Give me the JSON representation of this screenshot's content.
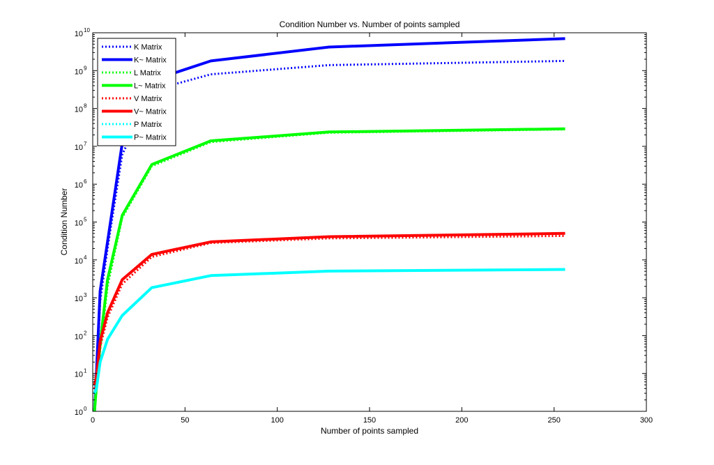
{
  "chart_data": {
    "type": "line",
    "title": "Condition Number vs. Number of points sampled",
    "xlabel": "Number of points sampled",
    "ylabel": "Condition Number",
    "xlim": [
      0,
      300
    ],
    "ylim": [
      1,
      10000000000
    ],
    "yscale": "log",
    "xticks": [
      0,
      50,
      100,
      150,
      200,
      250,
      300
    ],
    "xtick_labels": [
      "0",
      "50",
      "100",
      "150",
      "200",
      "250",
      "300"
    ],
    "yticks": [
      1,
      10,
      100,
      1000,
      10000,
      100000,
      1000000,
      10000000,
      100000000,
      1000000000,
      10000000000
    ],
    "ytick_labels": [
      {
        "base": "10",
        "exp": "0"
      },
      {
        "base": "10",
        "exp": "1"
      },
      {
        "base": "10",
        "exp": "2"
      },
      {
        "base": "10",
        "exp": "3"
      },
      {
        "base": "10",
        "exp": "4"
      },
      {
        "base": "10",
        "exp": "5"
      },
      {
        "base": "10",
        "exp": "6"
      },
      {
        "base": "10",
        "exp": "7"
      },
      {
        "base": "10",
        "exp": "8"
      },
      {
        "base": "10",
        "exp": "9"
      },
      {
        "base": "10",
        "exp": "10"
      }
    ],
    "grid": false,
    "legend_position": "top-left",
    "x": [
      1,
      2,
      4,
      8,
      16,
      32,
      64,
      128,
      256
    ],
    "series": [
      {
        "name": "K Matrix",
        "color": "#0000ff",
        "style": "dotted",
        "values": [
          1,
          5,
          800,
          20000,
          6000000,
          300000000,
          800000000,
          1400000000,
          1800000000
        ]
      },
      {
        "name": "K~ Matrix",
        "color": "#0000ff",
        "style": "solid",
        "values": [
          1,
          10,
          1500,
          30000,
          12000000,
          550000000,
          1800000000,
          4200000000,
          7000000000
        ]
      },
      {
        "name": "L Matrix",
        "color": "#00ff00",
        "style": "dotted",
        "values": [
          1,
          3,
          40,
          2000,
          130000,
          3000000,
          13000000,
          23000000,
          28000000
        ]
      },
      {
        "name": "L~ Matrix",
        "color": "#00ff00",
        "style": "solid",
        "values": [
          1,
          5,
          60,
          3000,
          150000,
          3300000,
          14000000,
          24000000,
          29000000
        ]
      },
      {
        "name": "V Matrix",
        "color": "#ff0000",
        "style": "dotted",
        "values": [
          4,
          6,
          50,
          300,
          2300,
          12000,
          28000,
          37000,
          43000
        ]
      },
      {
        "name": "V~ Matrix",
        "color": "#ff0000",
        "style": "solid",
        "values": [
          5,
          8,
          70,
          400,
          3000,
          14000,
          30000,
          41000,
          50000
        ]
      },
      {
        "name": "P Matrix",
        "color": "#00ffff",
        "style": "dotted",
        "values": [
          3,
          4,
          20,
          80,
          330,
          1800,
          3800,
          5000,
          5500
        ]
      },
      {
        "name": "P~ Matrix",
        "color": "#00ffff",
        "style": "solid",
        "values": [
          3,
          4,
          20,
          80,
          340,
          1850,
          3850,
          5050,
          5600
        ]
      }
    ]
  }
}
